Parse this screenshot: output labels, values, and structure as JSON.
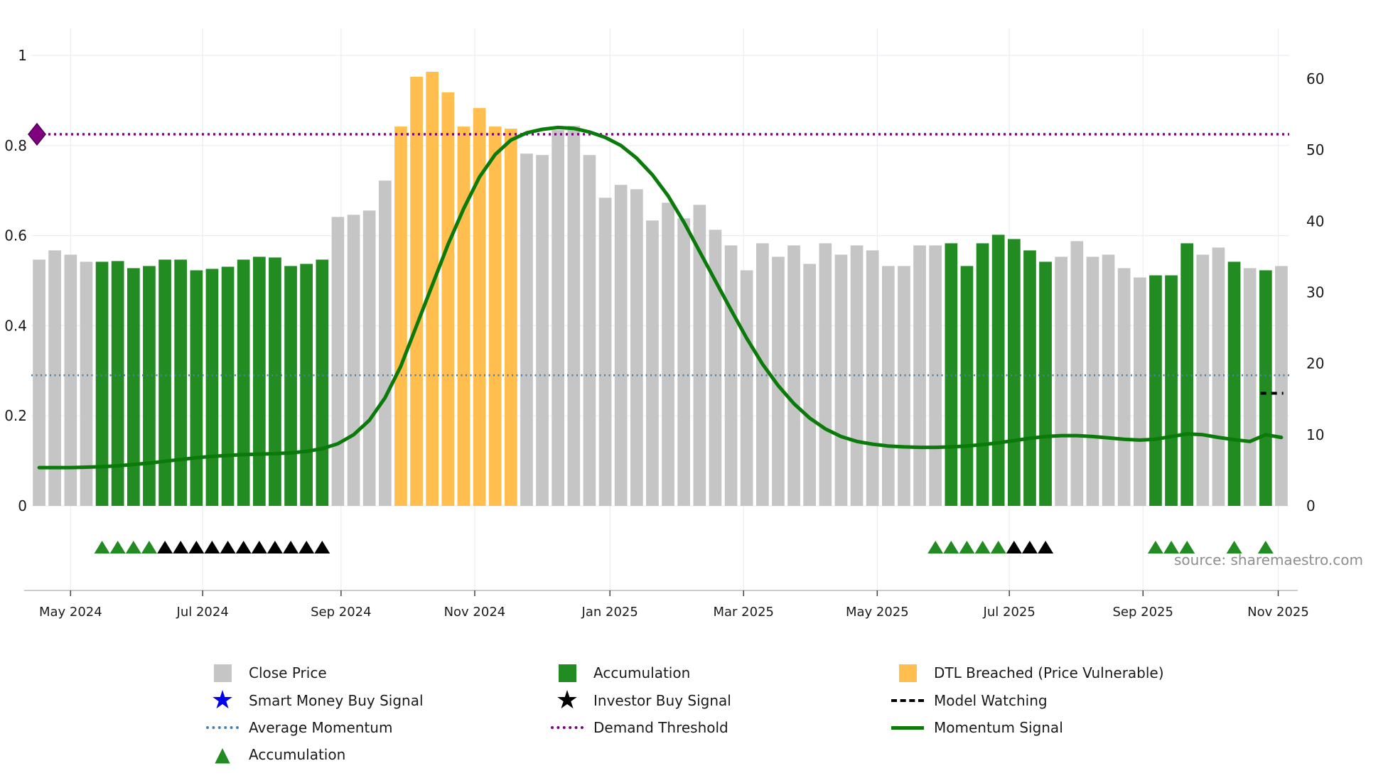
{
  "source_text": "source: sharemaestro.com",
  "colors": {
    "close": "#c5c5c5",
    "accumulation": "#228B22",
    "dtl": "#ffbe4e",
    "momentum": "#0a7a0a",
    "avg_momentum": "#4682b4",
    "threshold": "#800080",
    "model_watching": "#000000",
    "smart_money": "#0000ee",
    "investor": "#000000",
    "grid": "#ebedf2",
    "axis_text": "#1a1a1a",
    "spine": "#bbbbbb"
  },
  "chart_data": {
    "type": "bar",
    "overlay_type": "line",
    "title": "",
    "xlabel": "",
    "ylabel_left": "",
    "ylabel_right": "",
    "y_left": {
      "min": 0,
      "max": 1,
      "ticks": [
        {
          "v": 0,
          "label": "0"
        },
        {
          "v": 0.2,
          "label": "0.2"
        },
        {
          "v": 0.4,
          "label": "0.4"
        },
        {
          "v": 0.6,
          "label": "0.6"
        },
        {
          "v": 0.8,
          "label": "0.8"
        },
        {
          "v": 1,
          "label": "1"
        }
      ]
    },
    "y_right": {
      "min": 0,
      "max": 60,
      "ticks": [
        {
          "v": 0,
          "label": "0"
        },
        {
          "v": 10,
          "label": "10"
        },
        {
          "v": 20,
          "label": "20"
        },
        {
          "v": 30,
          "label": "30"
        },
        {
          "v": 40,
          "label": "40"
        },
        {
          "v": 50,
          "label": "50"
        },
        {
          "v": 60,
          "label": "60"
        }
      ]
    },
    "x_ticks": [
      {
        "pos": 2.0,
        "label": "May 2024"
      },
      {
        "pos": 10.4,
        "label": "Jul 2024"
      },
      {
        "pos": 19.2,
        "label": "Sep 2024"
      },
      {
        "pos": 27.7,
        "label": "Nov 2024"
      },
      {
        "pos": 36.3,
        "label": "Jan 2025"
      },
      {
        "pos": 44.8,
        "label": "Mar 2025"
      },
      {
        "pos": 53.3,
        "label": "May 2025"
      },
      {
        "pos": 61.7,
        "label": "Jul 2025"
      },
      {
        "pos": 70.2,
        "label": "Sep 2025"
      },
      {
        "pos": 78.8,
        "label": "Nov 2025"
      }
    ],
    "price_values": [
      34.6,
      35.9,
      35.3,
      34.3,
      34.3,
      34.4,
      33.4,
      33.7,
      34.6,
      34.6,
      33.1,
      33.3,
      33.6,
      34.6,
      35.0,
      34.9,
      33.7,
      34.0,
      34.6,
      40.6,
      40.9,
      41.5,
      45.7,
      53.3,
      60.3,
      61.0,
      58.1,
      53.3,
      55.9,
      53.3,
      53.0,
      49.5,
      49.3,
      52.8,
      53.4,
      49.3,
      43.3,
      45.1,
      44.5,
      40.1,
      42.6,
      40.4,
      42.3,
      38.8,
      36.6,
      33.1,
      36.9,
      35.0,
      36.6,
      34.0,
      36.9,
      35.3,
      36.6,
      35.9,
      33.7,
      33.7,
      36.6,
      36.6,
      36.9,
      33.7,
      36.9,
      38.1,
      37.5,
      35.9,
      34.3,
      35.0,
      37.2,
      35.0,
      35.3,
      33.4,
      32.1,
      32.4,
      32.4,
      36.9,
      35.3,
      36.3,
      34.3,
      33.4,
      33.1,
      33.7
    ],
    "bar_types": "ccccaaaaaaaaaaaaaaaccccddddddddcccccccccccccccccccccccccccaaaaaaaccccccaaaccacac",
    "bar_type_legend": {
      "c": "Close Price",
      "a": "Accumulation",
      "d": "DTL Breached (Price Vulnerable)"
    },
    "momentum": [
      0.085,
      0.085,
      0.085,
      0.086,
      0.087,
      0.089,
      0.092,
      0.095,
      0.099,
      0.103,
      0.107,
      0.11,
      0.112,
      0.114,
      0.115,
      0.116,
      0.118,
      0.121,
      0.127,
      0.138,
      0.158,
      0.19,
      0.24,
      0.31,
      0.4,
      0.49,
      0.58,
      0.66,
      0.73,
      0.78,
      0.812,
      0.828,
      0.836,
      0.84,
      0.838,
      0.83,
      0.818,
      0.8,
      0.772,
      0.735,
      0.688,
      0.63,
      0.565,
      0.5,
      0.435,
      0.372,
      0.315,
      0.267,
      0.227,
      0.195,
      0.171,
      0.154,
      0.143,
      0.137,
      0.133,
      0.131,
      0.13,
      0.13,
      0.131,
      0.133,
      0.136,
      0.14,
      0.145,
      0.15,
      0.154,
      0.156,
      0.156,
      0.154,
      0.151,
      0.148,
      0.146,
      0.148,
      0.154,
      0.16,
      0.158,
      0.152,
      0.147,
      0.143,
      0.158,
      0.152
    ],
    "average_momentum": 0.29,
    "demand_threshold": 0.825,
    "threshold_marker": {
      "index": 0,
      "value": 0.825
    },
    "model_watching": {
      "index": 78.4,
      "value": 0.25
    },
    "accumulation_triangles": [
      4,
      5,
      6,
      7,
      57,
      58,
      59,
      60,
      61,
      71,
      72,
      73,
      76,
      78
    ],
    "investor_triangles": [
      8,
      9,
      10,
      11,
      12,
      13,
      14,
      15,
      16,
      17,
      18,
      62,
      63,
      64
    ],
    "grid": true,
    "legend_position": "bottom"
  },
  "legend": {
    "items": [
      {
        "key": "close-price",
        "label": "Close Price",
        "swatch": "square",
        "color": "#c5c5c5",
        "row": 0,
        "col": 0
      },
      {
        "key": "accumulation-bar",
        "label": "Accumulation",
        "swatch": "square",
        "color": "#228B22",
        "row": 0,
        "col": 1
      },
      {
        "key": "dtl-breached",
        "label": "DTL Breached (Price Vulnerable)",
        "swatch": "square",
        "color": "#ffbe4e",
        "row": 0,
        "col": 2
      },
      {
        "key": "smart-money",
        "label": "Smart Money Buy Signal",
        "swatch": "star",
        "color": "#0000ee",
        "row": 1,
        "col": 0
      },
      {
        "key": "investor-buy",
        "label": "Investor Buy Signal",
        "swatch": "star",
        "color": "#000000",
        "row": 1,
        "col": 1
      },
      {
        "key": "model-watching",
        "label": "Model Watching",
        "swatch": "dash",
        "color": "#000000",
        "row": 1,
        "col": 2
      },
      {
        "key": "average-momentum",
        "label": "Average Momentum",
        "swatch": "dotted",
        "color": "#4682b4",
        "row": 2,
        "col": 0
      },
      {
        "key": "demand-threshold",
        "label": "Demand Threshold",
        "swatch": "dotted",
        "color": "#800080",
        "row": 2,
        "col": 1
      },
      {
        "key": "momentum-signal",
        "label": "Momentum Signal",
        "swatch": "line",
        "color": "#0a7a0a",
        "row": 2,
        "col": 2
      },
      {
        "key": "accumulation-tri",
        "label": "Accumulation",
        "swatch": "triangle",
        "color": "#228B22",
        "row": 3,
        "col": 0
      }
    ]
  }
}
